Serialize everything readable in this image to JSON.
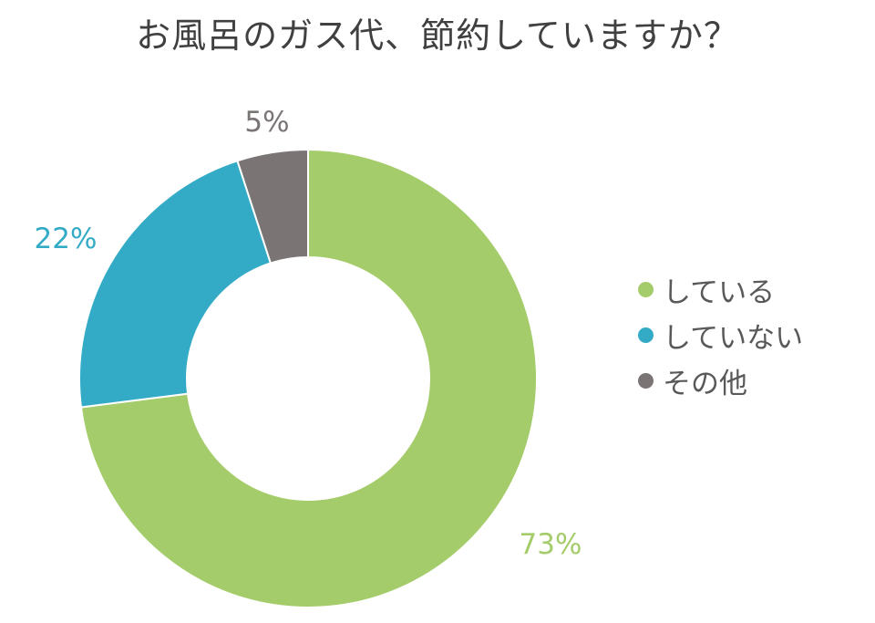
{
  "chart_data": {
    "type": "pie",
    "title": "お風呂のガス代、節約していますか？",
    "legend_position": "right",
    "series": [
      {
        "name": "している",
        "value": 73,
        "label": "73%",
        "color": "#a5cc6b"
      },
      {
        "name": "していない",
        "value": 22,
        "label": "22%",
        "color": "#34abc6"
      },
      {
        "name": "その他",
        "value": 5,
        "label": "5%",
        "color": "#7a7474"
      }
    ]
  }
}
